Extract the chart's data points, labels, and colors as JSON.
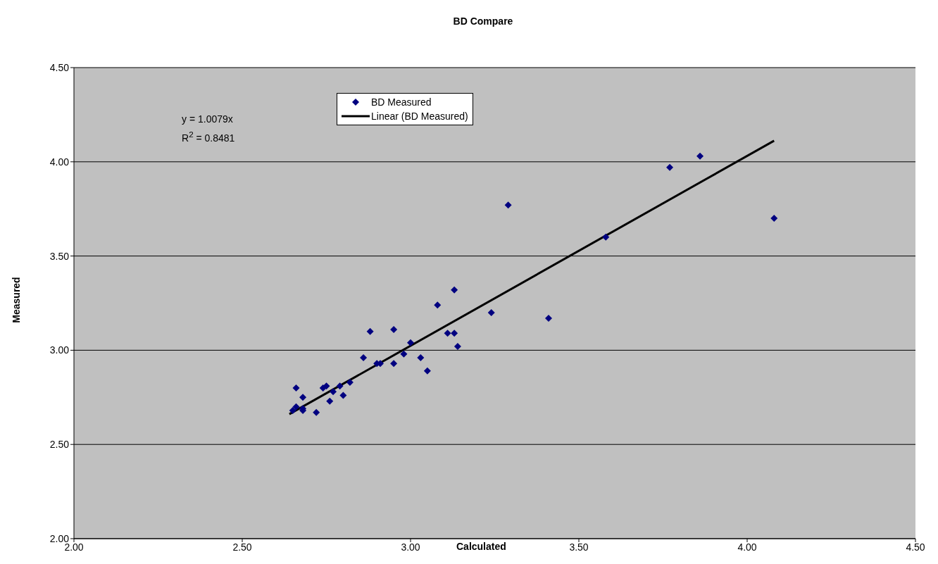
{
  "chart_data": {
    "type": "scatter",
    "title": "BD Compare",
    "xlabel": "Calculated",
    "ylabel": "Measured",
    "annotations": [
      "y = 1.0079x",
      "R$^{2}$ = 0.8481"
    ],
    "xlim": [
      2,
      4.5
    ],
    "ylim": [
      2,
      4.5
    ],
    "xticks": [
      {
        "value": 2,
        "label": "2.00"
      },
      {
        "value": 2.5,
        "label": "2.50"
      },
      {
        "value": 3,
        "label": "3.00"
      },
      {
        "value": 3.5,
        "label": "3.50"
      },
      {
        "value": 4,
        "label": "4.00"
      },
      {
        "value": 4.5,
        "label": "4.50"
      }
    ],
    "yticks": [
      {
        "value": 2,
        "label": "2.00"
      },
      {
        "value": 2.5,
        "label": "2.50"
      },
      {
        "value": 3,
        "label": "3.00"
      },
      {
        "value": 3.5,
        "label": "3.50"
      },
      {
        "value": 4,
        "label": "4.00"
      },
      {
        "value": 4.5,
        "label": "4.50"
      }
    ],
    "grid": "y",
    "legend": "top",
    "marker": "diamond",
    "series": [
      {
        "name": "BD Measured",
        "color": "#000080",
        "x": [
          2.65,
          2.66,
          2.66,
          2.68,
          2.68,
          2.68,
          2.72,
          2.74,
          2.75,
          2.76,
          2.77,
          2.79,
          2.8,
          2.82,
          2.86,
          2.88,
          2.9,
          2.91,
          2.95,
          2.95,
          2.98,
          3.0,
          3.03,
          3.05,
          3.08,
          3.11,
          3.13,
          3.13,
          3.14,
          3.24,
          3.29,
          3.41,
          3.58,
          3.77,
          3.86,
          4.08
        ],
        "values": [
          2.68,
          2.8,
          2.7,
          2.75,
          2.68,
          2.69,
          2.67,
          2.8,
          2.81,
          2.73,
          2.78,
          2.81,
          2.76,
          2.83,
          2.96,
          3.1,
          2.93,
          2.93,
          2.93,
          3.11,
          2.98,
          3.04,
          2.96,
          2.89,
          3.24,
          3.09,
          3.09,
          3.32,
          3.02,
          3.2,
          3.77,
          3.17,
          3.6,
          3.97,
          4.03,
          3.7
        ]
      },
      {
        "name": "Linear (BD Measured)",
        "type": "line",
        "marker": "none",
        "color": "#000000",
        "x": [
          2.64,
          4.08
        ],
        "values": [
          2.661,
          4.112
        ]
      }
    ]
  }
}
